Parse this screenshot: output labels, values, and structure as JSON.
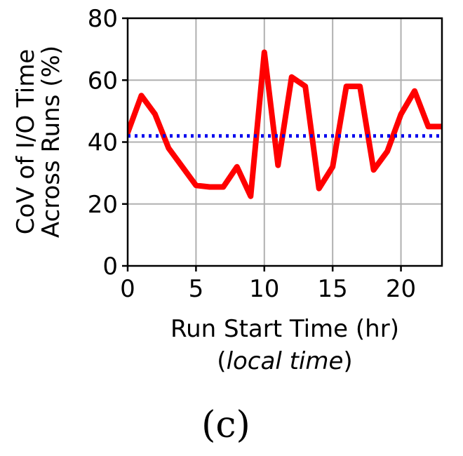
{
  "chart_data": {
    "type": "line",
    "xlabel": "Run Start Time (hr)",
    "xlabel_sub": "local time",
    "ylabel_line1": "CoV of I/O Time",
    "ylabel_line2": "Across Runs (%)",
    "caption": "(c)",
    "xlim": [
      0,
      23
    ],
    "ylim": [
      0,
      80
    ],
    "x_ticks": [
      "0",
      "5",
      "10",
      "15",
      "20"
    ],
    "y_ticks": [
      "0",
      "20",
      "40",
      "60",
      "80"
    ],
    "grid": true,
    "series": [
      {
        "x": [
          0,
          1,
          2,
          3,
          4,
          5,
          6,
          7,
          8,
          9,
          10,
          11,
          12,
          13,
          14,
          15,
          16,
          17,
          18,
          19,
          20,
          21,
          22,
          23
        ],
        "values": [
          43,
          55,
          49,
          38,
          32,
          26,
          25.5,
          25.5,
          32,
          22.5,
          69,
          32.5,
          61,
          58,
          25,
          32,
          58,
          58,
          31,
          37,
          49,
          56.5,
          45,
          45
        ],
        "color": "#ff0000",
        "style": "solid"
      },
      {
        "x": [
          0,
          23
        ],
        "values": [
          42,
          42
        ],
        "color": "#0000ee",
        "style": "dotted"
      }
    ]
  }
}
